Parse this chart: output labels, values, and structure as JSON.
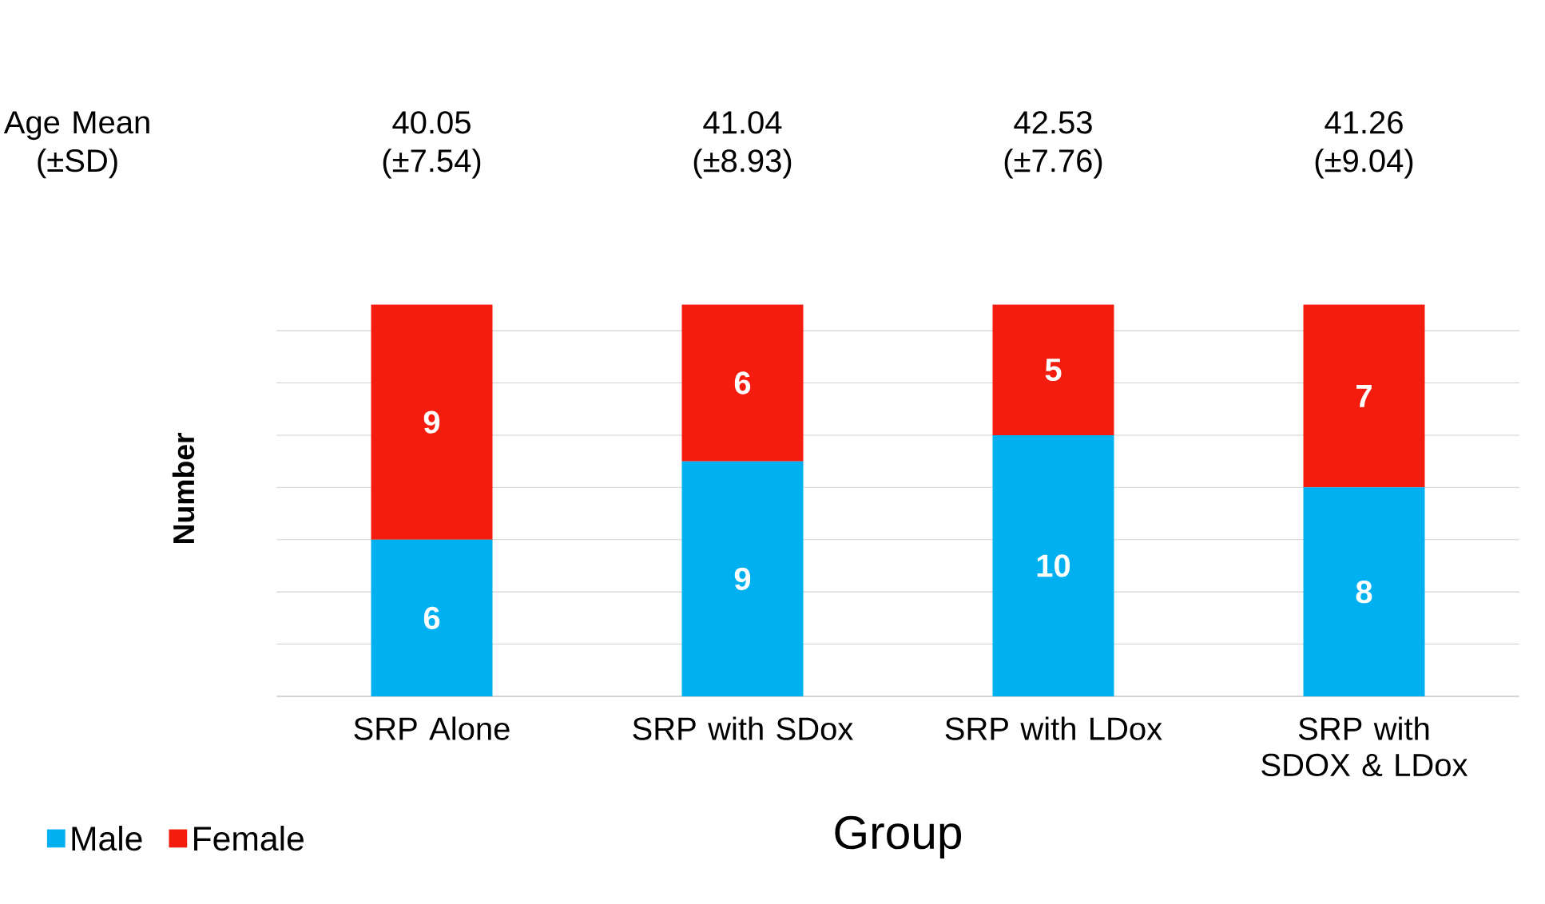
{
  "chart_data": {
    "type": "bar",
    "stacked": true,
    "categories": [
      "SRP Alone",
      "SRP with SDox",
      "SRP with LDox",
      "SRP with SDOX & LDox"
    ],
    "series": [
      {
        "name": "Male",
        "color": "#00b0f0",
        "values": [
          6,
          9,
          10,
          8
        ]
      },
      {
        "name": "Female",
        "color": "#f41c0f",
        "values": [
          9,
          6,
          5,
          7
        ]
      }
    ],
    "tick_labels": "x",
    "grid": "y",
    "data_labels": true,
    "legend": "bottom left",
    "xlabel": "Group",
    "ylabel": "Number",
    "annotations": [
      "Age Mean (±SD)",
      "40.05 (±7.54)",
      "41.04 (±8.93)",
      "42.53 (±7.76)",
      "41.26 (±9.04)"
    ]
  }
}
